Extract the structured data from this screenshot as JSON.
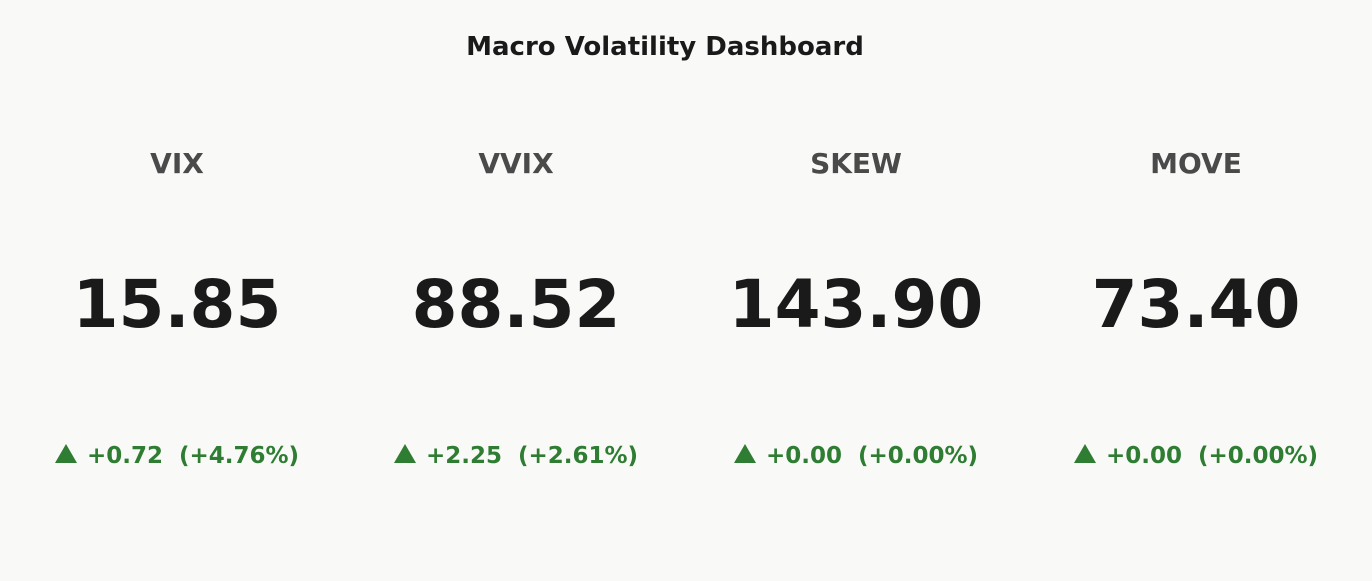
{
  "dashboard": {
    "title": "Macro Volatility Dashboard"
  },
  "colors": {
    "background": "#f9f9f7",
    "title": "#1a1a1a",
    "label": "#4a4a4a",
    "value": "#1a1a1a",
    "positive": "#2e7d32"
  },
  "cards": [
    {
      "label": "VIX",
      "value": "15.85",
      "change": "+0.72",
      "change_pct": "(+4.76%)",
      "direction_icon": "triangle-up-icon"
    },
    {
      "label": "VVIX",
      "value": "88.52",
      "change": "+2.25",
      "change_pct": "(+2.61%)",
      "direction_icon": "triangle-up-icon"
    },
    {
      "label": "SKEW",
      "value": "143.90",
      "change": "+0.00",
      "change_pct": "(+0.00%)",
      "direction_icon": "triangle-up-icon"
    },
    {
      "label": "MOVE",
      "value": "73.40",
      "change": "+0.00",
      "change_pct": "(+0.00%)",
      "direction_icon": "triangle-up-icon"
    }
  ]
}
